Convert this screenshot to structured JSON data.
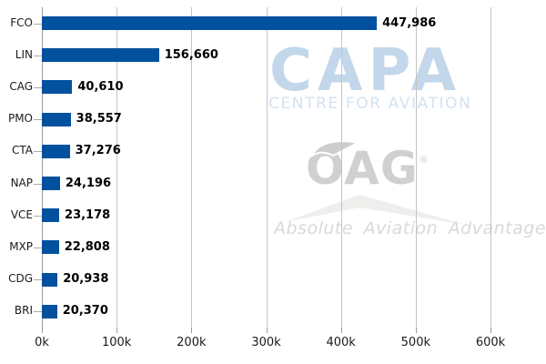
{
  "chart_data": {
    "type": "bar",
    "orientation": "horizontal",
    "title": "",
    "xlabel": "",
    "ylabel": "",
    "categories": [
      "FCO",
      "LIN",
      "CAG",
      "PMO",
      "CTA",
      "NAP",
      "VCE",
      "MXP",
      "CDG",
      "BRI"
    ],
    "values": [
      447986,
      156660,
      40610,
      38557,
      37276,
      24196,
      23178,
      22808,
      20938,
      20370
    ],
    "value_labels": [
      "447,986",
      "156,660",
      "40,610",
      "38,557",
      "37,276",
      "24,196",
      "23,178",
      "22,808",
      "20,938",
      "20,370"
    ],
    "x_ticks": [
      "0k",
      "100k",
      "200k",
      "300k",
      "400k",
      "500k",
      "600k"
    ],
    "x_tick_values": [
      0,
      100000,
      200000,
      300000,
      400000,
      500000,
      600000
    ],
    "xlim": [
      0,
      600000
    ],
    "grid": true,
    "legend": "none",
    "bar_color": "#01519E"
  },
  "watermarks": {
    "capa": {
      "title": "CAPA",
      "subtitle": "CENTRE FOR AVIATION",
      "title_color": "#c3d7ea",
      "subtitle_color": "#d4e2f1"
    },
    "oag": {
      "title": "OAG",
      "registered": "®",
      "tagline": "Absolute Aviation Advantage",
      "logo_color": "#d0d0ce",
      "tagline_color": "#d9d9d7",
      "mountain_color": "#eeeeec"
    }
  }
}
